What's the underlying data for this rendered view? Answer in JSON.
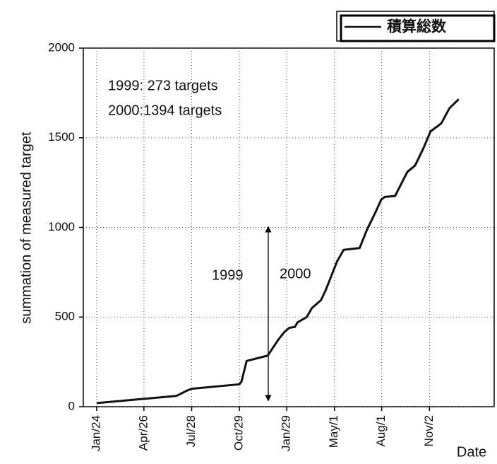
{
  "chart_data": {
    "type": "line",
    "y_label": "summation of measured target",
    "x_label": "Date",
    "annotations": [
      "1999:  273 targets",
      "2000:1394 targets",
      "1999",
      "2000"
    ],
    "series": [
      {
        "name": "積算総数",
        "color": "#111111",
        "x": [
          0,
          155,
          176,
          185,
          278,
          282,
          285,
          292,
          333,
          354,
          365,
          375,
          386,
          391,
          409,
          419,
          437,
          446,
          457,
          468,
          481,
          512,
          526,
          543,
          554,
          561,
          581,
          605,
          620,
          636,
          650,
          671,
          687,
          705
        ],
        "values": [
          20,
          60,
          90,
          100,
          125,
          140,
          175,
          255,
          285,
          375,
          415,
          440,
          445,
          470,
          500,
          550,
          595,
          650,
          730,
          810,
          875,
          885,
          985,
          1085,
          1155,
          1170,
          1175,
          1310,
          1345,
          1440,
          1535,
          1580,
          1665,
          1715
        ]
      }
    ],
    "xlim": [
      -26,
      774
    ],
    "xticks": [
      {
        "value": 0,
        "label": "Jan/24"
      },
      {
        "value": 92,
        "label": "Apr/26"
      },
      {
        "value": 185,
        "label": "Jul/28"
      },
      {
        "value": 278,
        "label": "Oct/29"
      },
      {
        "value": 370,
        "label": "Jan/29"
      },
      {
        "value": 463,
        "label": "May/1"
      },
      {
        "value": 555,
        "label": "Aug/1"
      },
      {
        "value": 648,
        "label": "Nov/2"
      }
    ],
    "ylim": [
      0,
      2000
    ],
    "yticks": [
      0,
      500,
      1000,
      1500,
      2000
    ],
    "grid": true
  }
}
